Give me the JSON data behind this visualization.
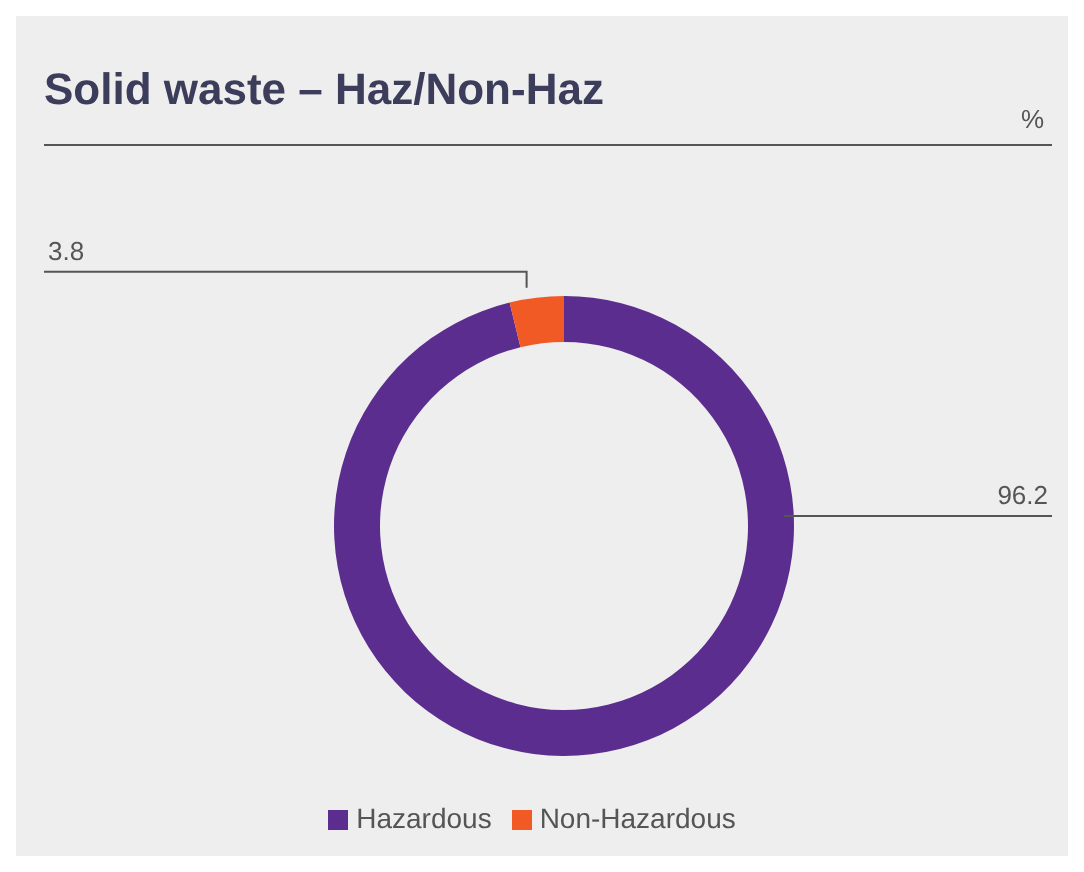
{
  "chart_data": {
    "type": "donut",
    "title": "Solid waste – Haz/Non-Haz",
    "subtitle": "%",
    "categories": [
      "Hazardous",
      "Non-Hazardous"
    ],
    "values": [
      96.2,
      3.8
    ],
    "colors": [
      "#5b2d8e",
      "#f15a24"
    ],
    "data_labels": true,
    "legend": "bottom"
  }
}
